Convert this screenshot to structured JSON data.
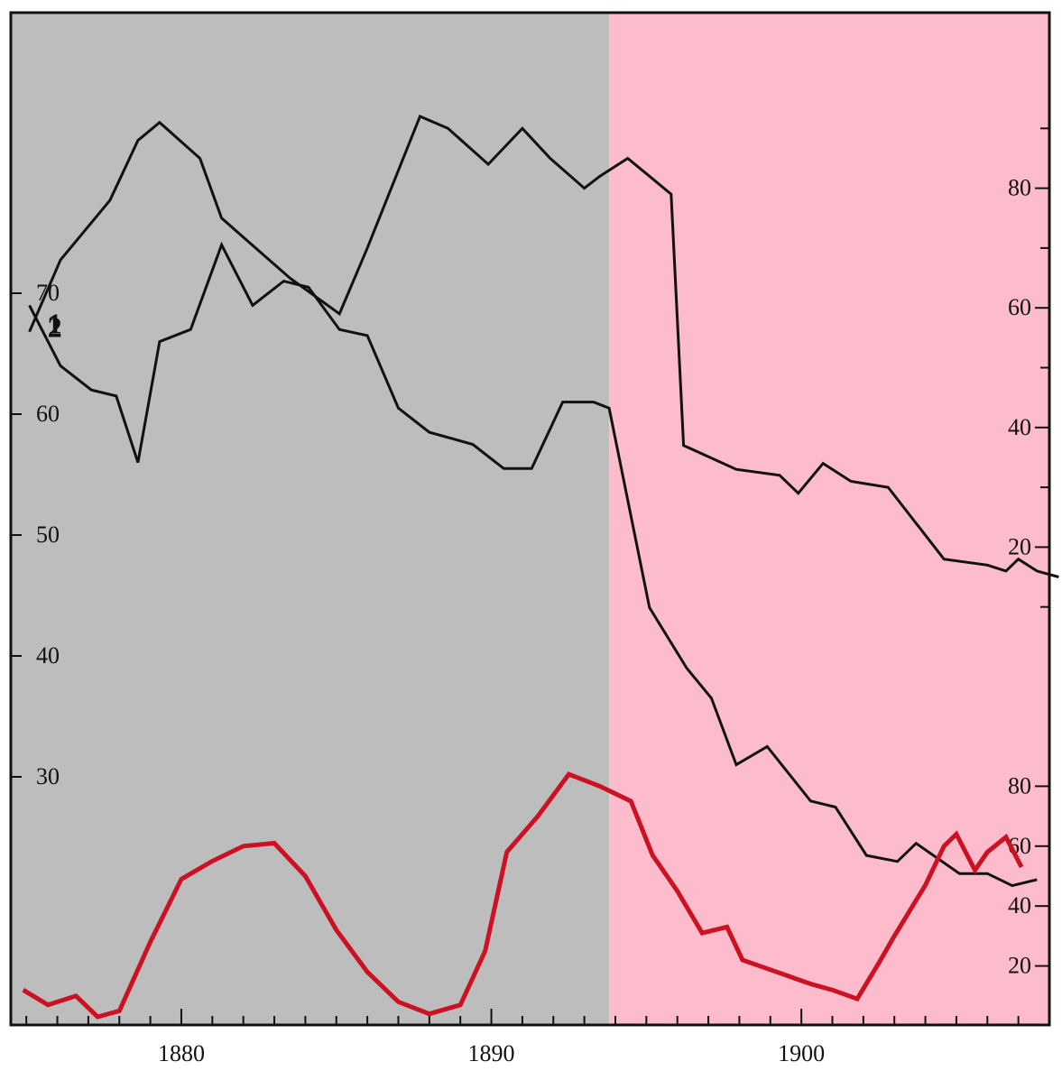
{
  "chart_data": {
    "type": "line",
    "title": "",
    "xlabel": "",
    "x_ticks": [
      1880,
      1890,
      1900
    ],
    "xlim": [
      1874.5,
      1908
    ],
    "background_bands": [
      {
        "from": 1874.5,
        "to": 1893.8,
        "color": "#bdbdbd"
      },
      {
        "from": 1893.8,
        "to": 1908,
        "color": "#fdbccb"
      }
    ],
    "axes": {
      "left": {
        "ticks": [
          30,
          40,
          50,
          60,
          70
        ],
        "ylim": [
          25,
          85
        ]
      },
      "right_upper": {
        "ticks": [
          20,
          40,
          60,
          80
        ],
        "ylim": [
          -2,
          101
        ]
      },
      "right_lower": {
        "ticks": [
          20,
          40,
          60,
          80
        ],
        "ylim": [
          0,
          130
        ]
      }
    },
    "series": [
      {
        "name": "1",
        "color": "#111111",
        "axis": "right_upper",
        "points": [
          [
            1875.1,
            56
          ],
          [
            1876.1,
            68
          ],
          [
            1877.7,
            78
          ],
          [
            1878.6,
            88
          ],
          [
            1879.3,
            91
          ],
          [
            1880.6,
            85
          ],
          [
            1881.3,
            75
          ],
          [
            1883.5,
            65
          ],
          [
            1885.1,
            59
          ],
          [
            1886.0,
            70
          ],
          [
            1887.7,
            92
          ],
          [
            1888.6,
            90
          ],
          [
            1889.9,
            84
          ],
          [
            1891.0,
            90
          ],
          [
            1891.9,
            85
          ],
          [
            1893.0,
            80
          ],
          [
            1893.5,
            82
          ],
          [
            1894.4,
            85
          ],
          [
            1895.1,
            82
          ],
          [
            1895.8,
            79
          ],
          [
            1896.2,
            37
          ],
          [
            1897.9,
            33
          ],
          [
            1899.3,
            32
          ],
          [
            1899.9,
            29
          ],
          [
            1900.7,
            34
          ],
          [
            1901.6,
            31
          ],
          [
            1902.8,
            30
          ],
          [
            1904.6,
            18
          ],
          [
            1906.0,
            17
          ],
          [
            1906.6,
            16
          ],
          [
            1907.0,
            18
          ],
          [
            1907.6,
            16
          ],
          [
            1908.3,
            15
          ]
        ]
      },
      {
        "name": "2",
        "color": "#111111",
        "axis": "left",
        "points": [
          [
            1875.1,
            69
          ],
          [
            1876.1,
            64
          ],
          [
            1877.1,
            62
          ],
          [
            1877.9,
            61.5
          ],
          [
            1878.6,
            56
          ],
          [
            1879.3,
            66
          ],
          [
            1880.3,
            67
          ],
          [
            1881.3,
            74
          ],
          [
            1882.3,
            69
          ],
          [
            1883.3,
            71
          ],
          [
            1884.1,
            70.5
          ],
          [
            1885.1,
            67
          ],
          [
            1886.0,
            66.5
          ],
          [
            1887.0,
            60.5
          ],
          [
            1888.0,
            58.5
          ],
          [
            1889.4,
            57.5
          ],
          [
            1890.4,
            55.5
          ],
          [
            1891.3,
            55.5
          ],
          [
            1892.3,
            61
          ],
          [
            1893.3,
            61
          ],
          [
            1893.8,
            60.5
          ],
          [
            1895.1,
            44
          ],
          [
            1896.3,
            39
          ],
          [
            1897.1,
            36.5
          ],
          [
            1897.9,
            31
          ],
          [
            1898.9,
            32.5
          ],
          [
            1900.3,
            28
          ],
          [
            1901.1,
            27.5
          ],
          [
            1902.1,
            23.5
          ],
          [
            1903.1,
            23
          ],
          [
            1903.7,
            24.5
          ],
          [
            1905.1,
            22
          ],
          [
            1906.0,
            22
          ],
          [
            1906.8,
            21
          ],
          [
            1907.6,
            21.5
          ]
        ]
      },
      {
        "name": "",
        "color": "#cc1122",
        "axis": "right_lower",
        "points": [
          [
            1874.9,
            12
          ],
          [
            1875.7,
            7
          ],
          [
            1876.6,
            10
          ],
          [
            1877.3,
            3
          ],
          [
            1878.0,
            5
          ],
          [
            1879.0,
            28
          ],
          [
            1880.0,
            49
          ],
          [
            1881.0,
            55
          ],
          [
            1882.0,
            60
          ],
          [
            1883.0,
            61
          ],
          [
            1884.0,
            50
          ],
          [
            1885.0,
            32
          ],
          [
            1886.0,
            18
          ],
          [
            1887.0,
            8
          ],
          [
            1888.0,
            4
          ],
          [
            1889.0,
            7
          ],
          [
            1889.8,
            25
          ],
          [
            1890.5,
            58
          ],
          [
            1891.5,
            70
          ],
          [
            1892.5,
            84
          ],
          [
            1893.5,
            80
          ],
          [
            1894.5,
            75
          ],
          [
            1895.2,
            57
          ],
          [
            1896.0,
            45
          ],
          [
            1896.8,
            31
          ],
          [
            1897.6,
            33
          ],
          [
            1898.1,
            22
          ],
          [
            1899.2,
            18
          ],
          [
            1900.3,
            14
          ],
          [
            1901.0,
            12
          ],
          [
            1901.8,
            9
          ],
          [
            1902.5,
            21
          ],
          [
            1903.0,
            30
          ],
          [
            1904.0,
            47
          ],
          [
            1904.6,
            60
          ],
          [
            1905.0,
            64
          ],
          [
            1905.6,
            52
          ],
          [
            1906.0,
            58
          ],
          [
            1906.6,
            63
          ],
          [
            1907.1,
            53
          ]
        ]
      }
    ]
  }
}
